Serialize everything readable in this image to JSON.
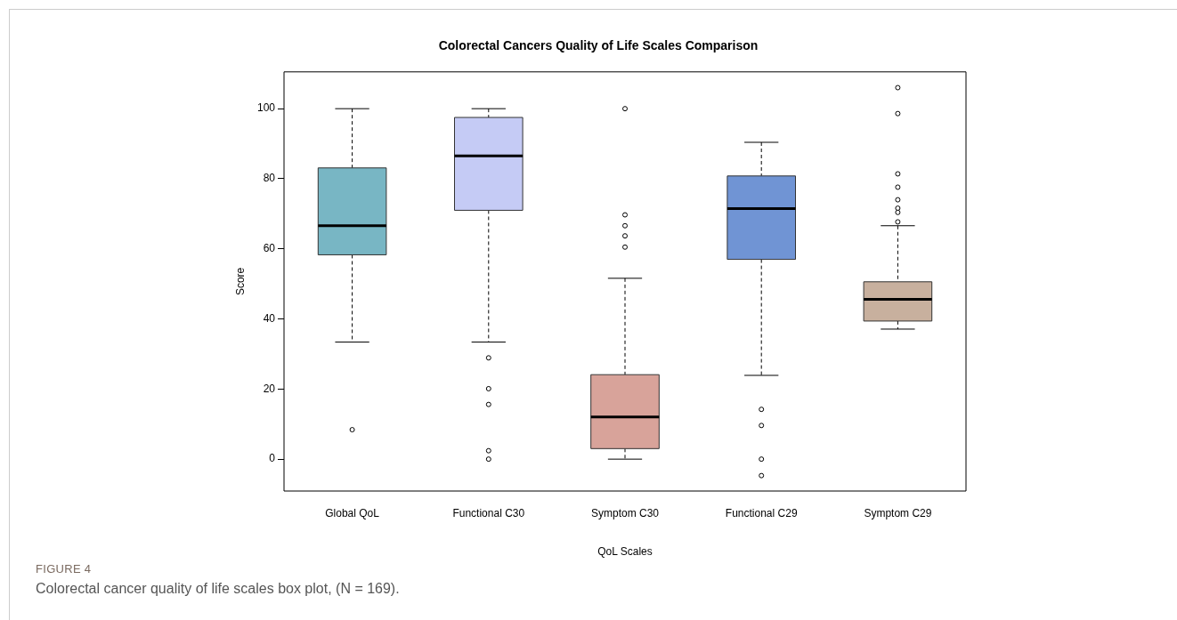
{
  "chart_data": {
    "type": "box",
    "title": "Colorectal Cancers Quality of Life Scales Comparison",
    "xlabel": "QoL Scales",
    "ylabel": "Score",
    "categories": [
      "Global QoL",
      "Functional C30",
      "Symptom C30",
      "Functional C29",
      "Symptom C29"
    ],
    "colors": [
      "#78b6c4",
      "#c5cbf5",
      "#d8a39a",
      "#7094d4",
      "#c8b09e"
    ],
    "boxes": [
      {
        "low": 33.4,
        "q1": 58.3,
        "median": 66.6,
        "q3": 83.1,
        "high": 100,
        "outliers": [
          8.4
        ]
      },
      {
        "low": 33.4,
        "q1": 71.0,
        "median": 86.5,
        "q3": 97.5,
        "high": 100,
        "outliers": [
          28.9,
          20.1,
          15.6,
          2.4,
          0
        ]
      },
      {
        "low": 0,
        "q1": 3.0,
        "median": 12.0,
        "q3": 24.1,
        "high": 51.6,
        "outliers": [
          100,
          69.7,
          66.6,
          63.7,
          60.5
        ]
      },
      {
        "low": 23.9,
        "q1": 57.0,
        "median": 71.5,
        "q3": 80.8,
        "high": 90.4,
        "outliers": [
          14.2,
          9.6,
          0,
          -4.7
        ]
      },
      {
        "low": 37.1,
        "q1": 39.4,
        "median": 45.6,
        "q3": 50.6,
        "high": 66.6,
        "outliers": [
          106.0,
          98.6,
          81.4,
          77.6,
          74.0,
          71.6,
          70.4,
          67.7
        ]
      }
    ],
    "ylim": [
      -9.1,
      110.5
    ],
    "yticks": [
      0,
      20,
      40,
      60,
      80,
      100
    ],
    "grid": false,
    "legend": false,
    "annotations": [
      "FIGURE 4",
      "Colorectal cancer quality of life scales box plot, (N = 169)."
    ]
  }
}
